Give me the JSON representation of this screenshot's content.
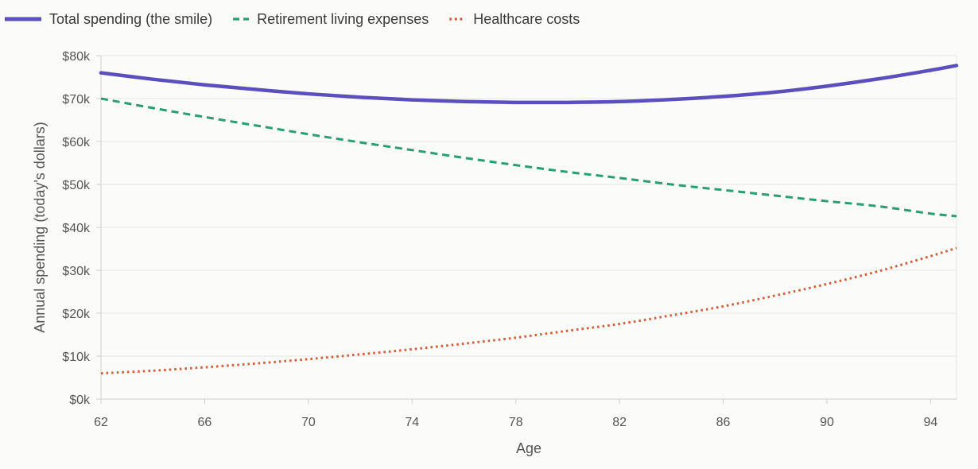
{
  "colors": {
    "background": "#fbfbfa",
    "grid": "#e6e6e6",
    "axis": "#cfcfcf"
  },
  "chart_data": {
    "type": "line",
    "xlabel": "Age",
    "ylabel": "Annual spending (today's dollars)",
    "xlim": [
      62,
      95
    ],
    "ylim": [
      0,
      80000
    ],
    "grid": true,
    "legend_position": "top-left",
    "x_ticks": [
      62,
      66,
      70,
      74,
      78,
      82,
      86,
      90,
      94
    ],
    "x_tick_labels": [
      "62",
      "66",
      "70",
      "74",
      "78",
      "82",
      "86",
      "90",
      "94"
    ],
    "y_ticks": [
      0,
      10000,
      20000,
      30000,
      40000,
      50000,
      60000,
      70000,
      80000
    ],
    "y_tick_labels": [
      "$0k",
      "$10k",
      "$20k",
      "$30k",
      "$40k",
      "$50k",
      "$60k",
      "$70k",
      "$80k"
    ],
    "x": [
      62,
      64,
      66,
      68,
      70,
      72,
      74,
      76,
      78,
      80,
      82,
      84,
      86,
      88,
      90,
      92,
      94,
      95
    ],
    "series": [
      {
        "name": "Total spending (the smile)",
        "color": "#5b4fbe",
        "style": "solid",
        "values": [
          76000,
          74500,
          73200,
          72100,
          71100,
          70300,
          69700,
          69300,
          69100,
          69100,
          69300,
          69800,
          70500,
          71500,
          72900,
          74600,
          76600,
          77700
        ]
      },
      {
        "name": "Retirement living expenses",
        "color": "#2a9d73",
        "style": "dashed",
        "values": [
          70000,
          67800,
          65700,
          63700,
          61700,
          59800,
          58000,
          56200,
          54500,
          52900,
          51500,
          50000,
          48700,
          47400,
          46100,
          44900,
          43200,
          42600
        ]
      },
      {
        "name": "Healthcare costs",
        "color": "#d35f3a",
        "style": "dotted",
        "values": [
          6000,
          6600,
          7400,
          8300,
          9300,
          10400,
          11600,
          12900,
          14300,
          15900,
          17500,
          19500,
          21600,
          24100,
          26800,
          29800,
          33300,
          35200
        ]
      }
    ]
  }
}
